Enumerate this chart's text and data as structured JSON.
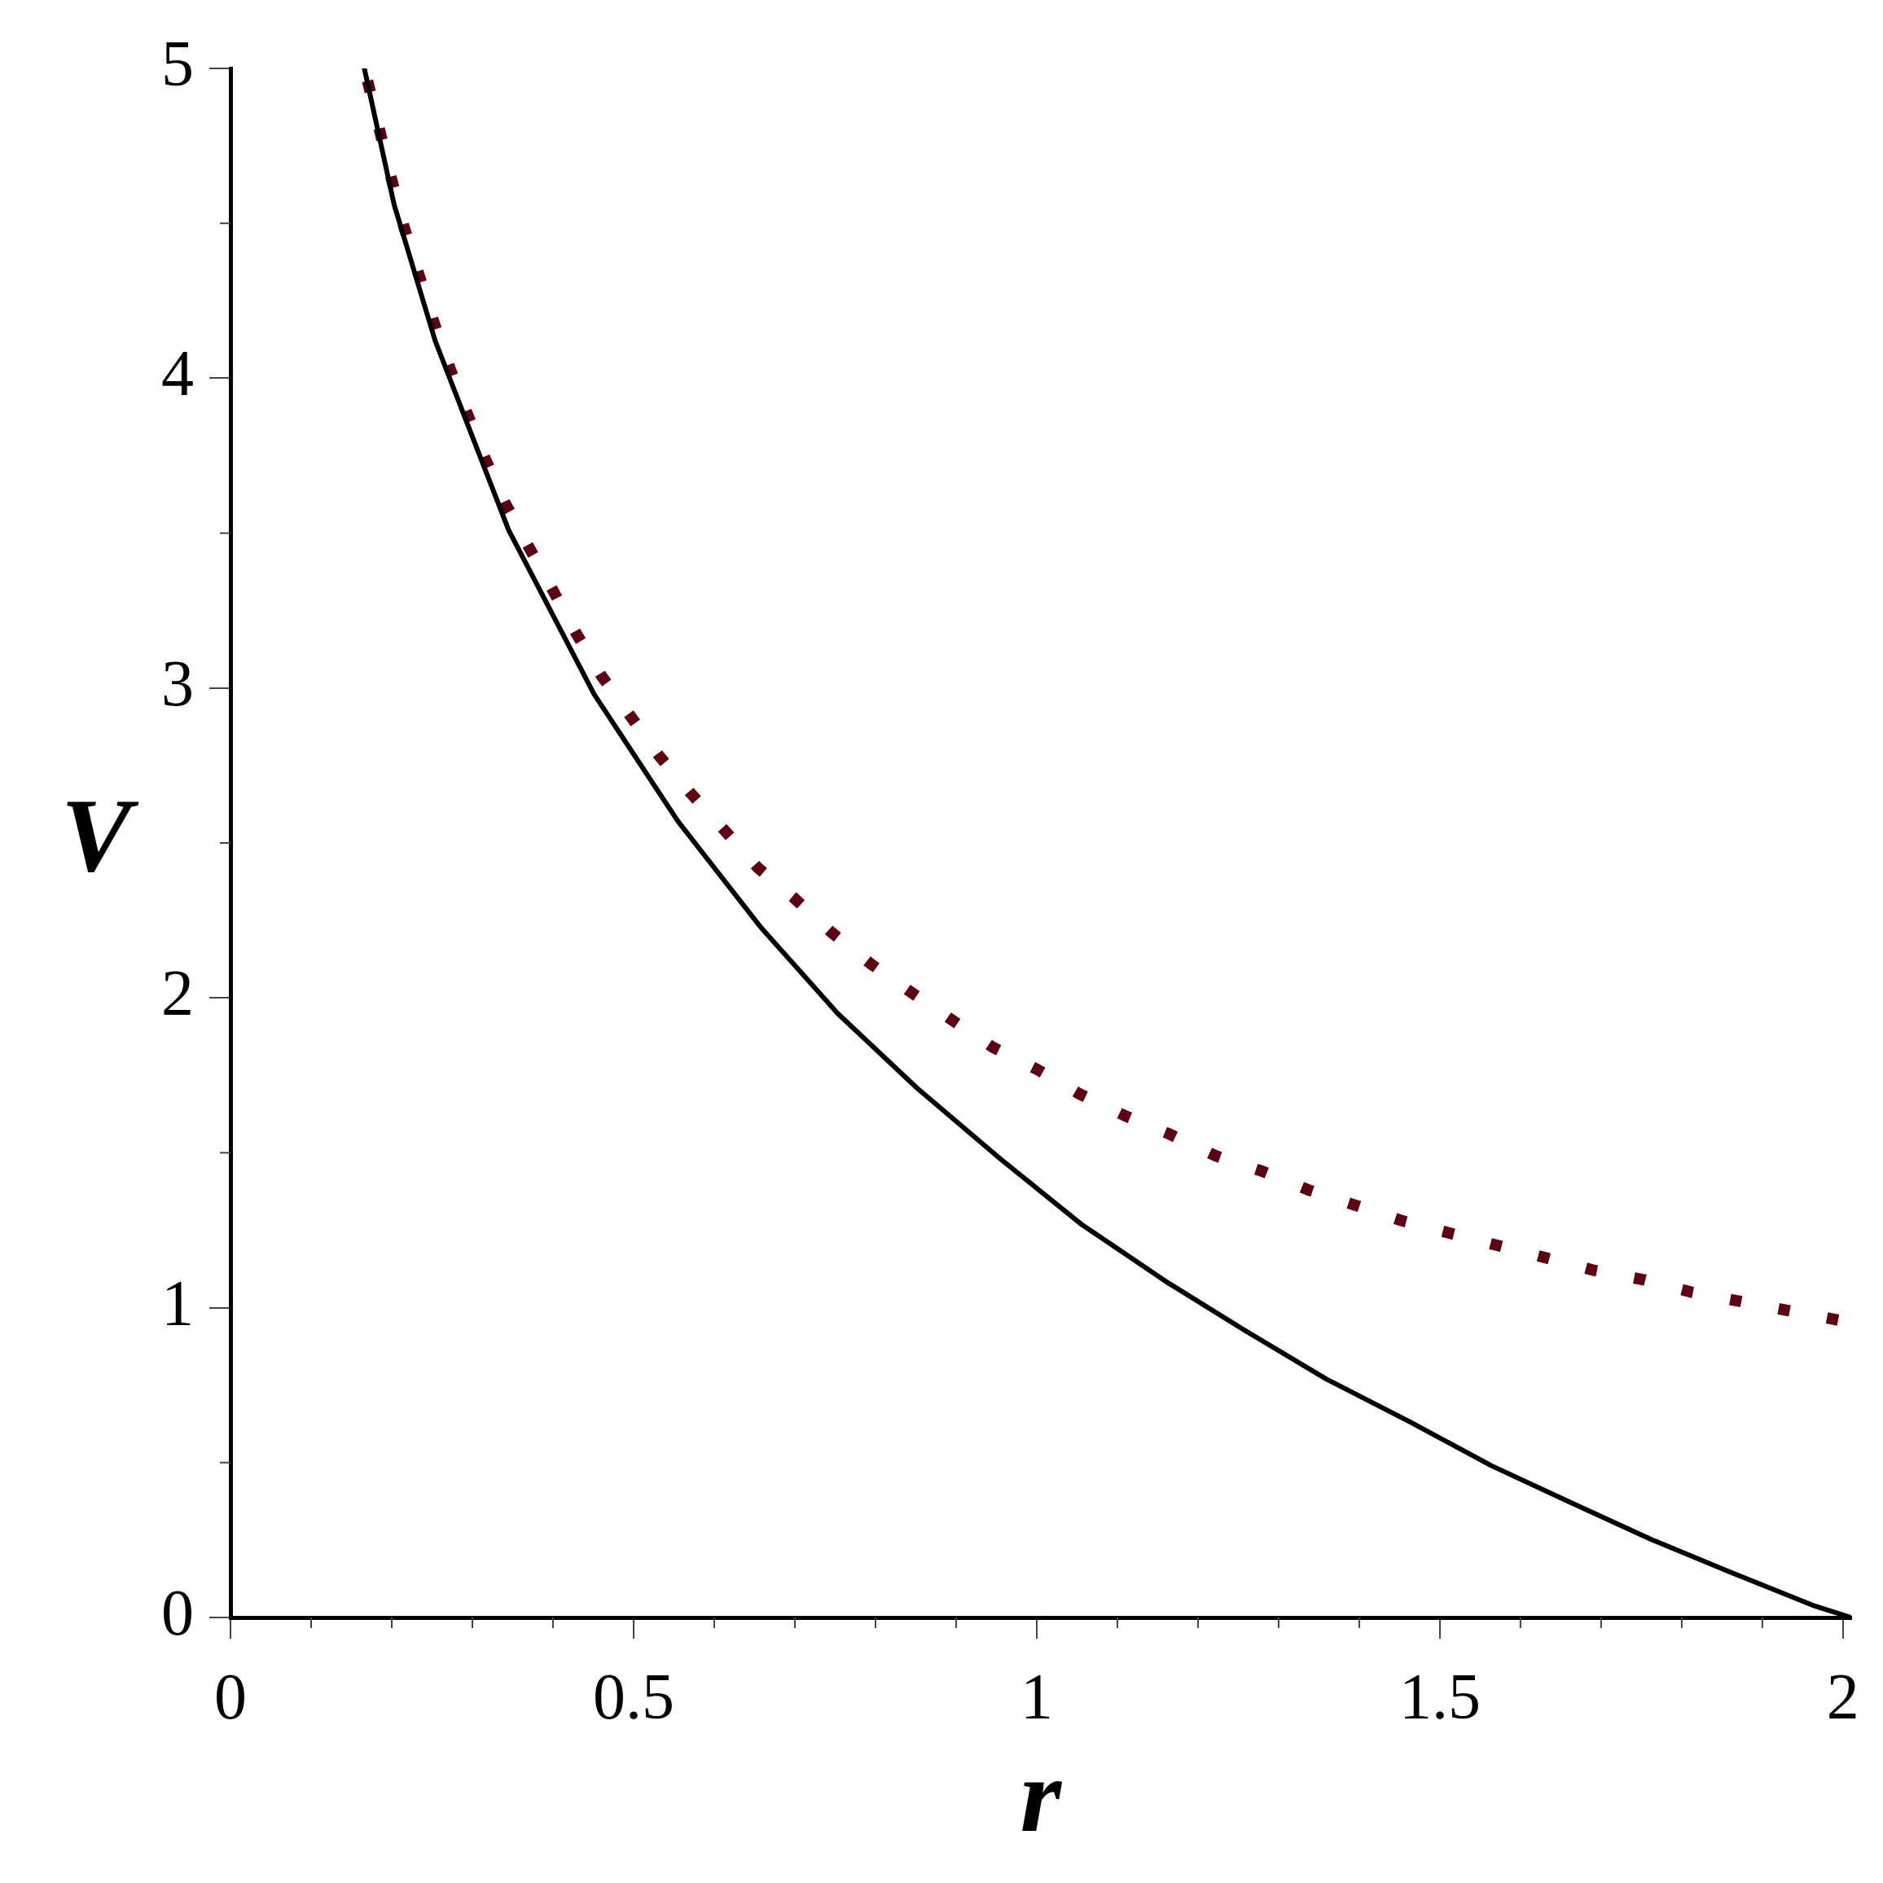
{
  "chart_data": {
    "type": "line",
    "xlabel": "r",
    "ylabel": "V",
    "xlim": [
      0,
      2.01
    ],
    "ylim": [
      0,
      5
    ],
    "xticks": [
      0,
      {
        "value": 0.1,
        "label": null
      },
      {
        "value": 0.2,
        "label": null
      },
      {
        "value": 0.3,
        "label": null
      },
      {
        "value": 0.4,
        "label": null
      },
      0.5,
      {
        "value": 0.6,
        "label": null
      },
      {
        "value": 0.7,
        "label": null
      },
      {
        "value": 0.8,
        "label": null
      },
      {
        "value": 0.9,
        "label": null
      },
      1,
      {
        "value": 1.1,
        "label": null
      },
      {
        "value": 1.2,
        "label": null
      },
      {
        "value": 1.3,
        "label": null
      },
      {
        "value": 1.4,
        "label": null
      },
      1.5,
      {
        "value": 1.6,
        "label": null
      },
      {
        "value": 1.7,
        "label": null
      },
      {
        "value": 1.8,
        "label": null
      },
      {
        "value": 1.9,
        "label": null
      },
      2
    ],
    "yticks": [
      0,
      {
        "value": 0.5,
        "label": null
      },
      1,
      {
        "value": 1.5,
        "label": null
      },
      2,
      {
        "value": 2.5,
        "label": null
      },
      3,
      {
        "value": 3.5,
        "label": null
      },
      4,
      {
        "value": 4.5,
        "label": null
      },
      5
    ],
    "series": [
      {
        "color": "#000000",
        "line_style": "solid",
        "x": [
          0.166,
          0.203,
          0.254,
          0.345,
          0.451,
          0.555,
          0.657,
          0.753,
          0.851,
          0.955,
          1.055,
          1.163,
          1.256,
          1.359,
          1.464,
          1.564,
          1.655,
          1.764,
          1.857,
          1.962,
          2.01
        ],
        "values": [
          5.0,
          4.56,
          4.12,
          3.51,
          2.98,
          2.57,
          2.23,
          1.95,
          1.71,
          1.48,
          1.27,
          1.08,
          0.93,
          0.77,
          0.63,
          0.49,
          0.38,
          0.25,
          0.15,
          0.04,
          0
        ]
      },
      {
        "color": "#5f0012",
        "line_style": "dotted",
        "x": [
          0.17,
          0.185,
          0.199,
          0.215,
          0.233,
          0.251,
          0.271,
          0.293,
          0.316,
          0.34,
          0.369,
          0.399,
          0.428,
          0.46,
          0.496,
          0.532,
          0.571,
          0.613,
          0.654,
          0.7,
          0.746,
          0.794,
          0.843,
          0.894,
          0.946,
          1.0,
          1.053,
          1.109,
          1.165,
          1.222,
          1.28,
          1.337,
          1.396,
          1.454,
          1.513,
          1.573,
          1.633,
          1.692,
          1.753,
          1.812,
          1.873,
          1.933,
          1.994
        ],
        "values": [
          4.96,
          4.8,
          4.65,
          4.49,
          4.34,
          4.19,
          4.04,
          3.89,
          3.74,
          3.6,
          3.46,
          3.32,
          3.18,
          3.04,
          2.91,
          2.78,
          2.66,
          2.54,
          2.42,
          2.32,
          2.21,
          2.11,
          2.02,
          1.93,
          1.84,
          1.77,
          1.69,
          1.62,
          1.56,
          1.49,
          1.44,
          1.38,
          1.33,
          1.28,
          1.24,
          1.2,
          1.16,
          1.12,
          1.09,
          1.05,
          1.02,
          0.99,
          0.96
        ]
      }
    ]
  }
}
